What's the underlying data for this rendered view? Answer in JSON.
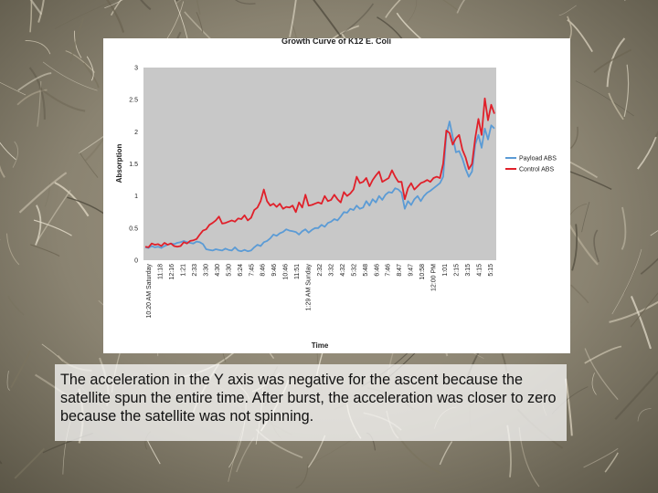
{
  "chart_data": {
    "type": "line",
    "title": "Growth Curve of K12 E. Coli",
    "xlabel": "Time",
    "ylabel": "Absorption",
    "ylim": [
      0,
      3
    ],
    "yticks": [
      "0",
      "0.5",
      "1",
      "1.5",
      "2",
      "2.5",
      "3"
    ],
    "grid": false,
    "legend_position": "right",
    "x_tick_labels": [
      "10:20 AM Saturday",
      "11:18",
      "12:16",
      "1:21",
      "2:33",
      "3:30",
      "4:30",
      "5:30",
      "6:24",
      "7:45",
      "8:46",
      "9:46",
      "10:46",
      "11:51",
      "1:29 AM Sunday",
      "2:32",
      "3:32",
      "4:32",
      "5:32",
      "5:48",
      "6:46",
      "7:46",
      "8:47",
      "9:47",
      "10:58",
      "12:00 PM",
      "1:01",
      "2:15",
      "3:15",
      "4:15",
      "5:15"
    ],
    "series": [
      {
        "name": "Payload ABS",
        "color": "#5b9bd5",
        "values": [
          0.2,
          0.19,
          0.22,
          0.2,
          0.21,
          0.19,
          0.22,
          0.24,
          0.26,
          0.25,
          0.27,
          0.28,
          0.3,
          0.28,
          0.27,
          0.26,
          0.29,
          0.28,
          0.25,
          0.17,
          0.16,
          0.15,
          0.17,
          0.16,
          0.15,
          0.18,
          0.16,
          0.15,
          0.2,
          0.15,
          0.14,
          0.16,
          0.14,
          0.15,
          0.2,
          0.24,
          0.22,
          0.28,
          0.3,
          0.34,
          0.4,
          0.38,
          0.42,
          0.44,
          0.48,
          0.46,
          0.45,
          0.44,
          0.4,
          0.45,
          0.48,
          0.43,
          0.47,
          0.5,
          0.5,
          0.55,
          0.52,
          0.58,
          0.6,
          0.64,
          0.62,
          0.68,
          0.75,
          0.74,
          0.8,
          0.78,
          0.85,
          0.8,
          0.82,
          0.92,
          0.85,
          0.95,
          0.9,
          1.0,
          0.94,
          1.02,
          1.06,
          1.05,
          1.12,
          1.1,
          1.05,
          0.8,
          0.92,
          0.86,
          0.95,
          1.0,
          0.92,
          1.0,
          1.05,
          1.08,
          1.12,
          1.16,
          1.2,
          1.3,
          1.95,
          2.16,
          1.92,
          1.68,
          1.7,
          1.58,
          1.42,
          1.3,
          1.38,
          1.8,
          1.95,
          1.75,
          2.05,
          1.88,
          2.1,
          2.05
        ]
      },
      {
        "name": "Control ABS",
        "color": "#e0202a",
        "values": [
          0.21,
          0.2,
          0.26,
          0.24,
          0.25,
          0.22,
          0.27,
          0.24,
          0.26,
          0.22,
          0.21,
          0.22,
          0.28,
          0.26,
          0.3,
          0.31,
          0.33,
          0.4,
          0.46,
          0.48,
          0.55,
          0.58,
          0.62,
          0.68,
          0.57,
          0.58,
          0.6,
          0.62,
          0.6,
          0.65,
          0.64,
          0.7,
          0.62,
          0.66,
          0.78,
          0.82,
          0.92,
          1.1,
          0.92,
          0.85,
          0.88,
          0.83,
          0.88,
          0.8,
          0.83,
          0.82,
          0.85,
          0.75,
          0.9,
          0.82,
          1.02,
          0.85,
          0.86,
          0.88,
          0.9,
          0.88,
          1.0,
          0.92,
          0.94,
          1.02,
          0.95,
          0.9,
          1.06,
          1.0,
          1.04,
          1.1,
          1.3,
          1.2,
          1.22,
          1.28,
          1.15,
          1.25,
          1.32,
          1.38,
          1.22,
          1.25,
          1.28,
          1.4,
          1.3,
          1.22,
          1.22,
          0.95,
          1.12,
          1.2,
          1.1,
          1.15,
          1.2,
          1.22,
          1.25,
          1.22,
          1.28,
          1.3,
          1.28,
          1.5,
          2.02,
          1.98,
          1.8,
          1.9,
          1.95,
          1.72,
          1.6,
          1.42,
          1.5,
          1.9,
          2.2,
          1.95,
          2.52,
          2.18,
          2.42,
          2.28
        ]
      }
    ]
  },
  "caption": "The acceleration in the Y axis was negative for the ascent because the satellite spun the entire time. After burst, the acceleration was closer to zero because the satellite was not spinning.",
  "colors": {
    "plot_area": "#c8c8c8",
    "chart_background": "#ffffff",
    "payload_line": "#5b9bd5",
    "control_line": "#e0202a"
  }
}
